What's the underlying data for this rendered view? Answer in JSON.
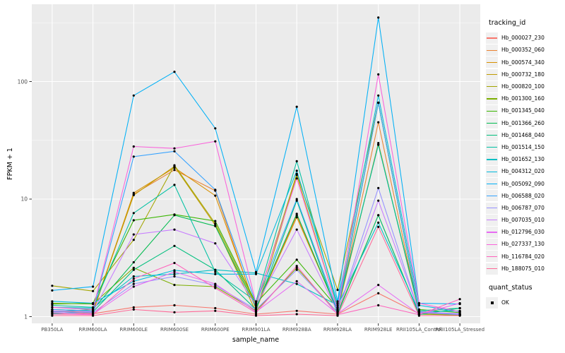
{
  "figure": {
    "xlabel": "sample_name",
    "ylabel": "FPKM + 1"
  },
  "legend": {
    "tracking_title": "tracking_id",
    "quant_title": "quant_status",
    "quant_ok_label": "OK"
  },
  "colors": {
    "panel_bg": "#EBEBEB",
    "grid": "#FFFFFF",
    "tick": "#333333",
    "tick_label": "#4D4D4D",
    "point": "#000000",
    "legend_key_bg": "#F0F0F0"
  },
  "chart_data": {
    "type": "line",
    "x_type": "categorical",
    "y_scale": "log10",
    "title": "",
    "xlabel": "sample_name",
    "ylabel": "FPKM + 1",
    "y_ticks": [
      1,
      10,
      100
    ],
    "y_minor_ticks": [
      3.16,
      31.6,
      316
    ],
    "ylim": [
      0.88,
      460
    ],
    "grid": true,
    "legend_position": "right",
    "point_marker": {
      "shape": "point",
      "color": "#000000",
      "meaning": "quant_status OK"
    },
    "categories": [
      "PB350LA",
      "RRIM600LA",
      "RRIM600LE",
      "RRIM600SE",
      "RRIM600PE",
      "RRIM901LA",
      "RRIM928BA",
      "RRIM928LA",
      "RRIM928LE",
      "RRII105LA_Control",
      "RRII105LA_Stressed"
    ],
    "series": [
      {
        "name": "Hb_000027_230",
        "color": "#F8766D",
        "values": [
          1.12,
          1.06,
          1.2,
          1.25,
          1.18,
          1.05,
          1.12,
          1.05,
          1.58,
          1.06,
          1.03
        ]
      },
      {
        "name": "Hb_000352_060",
        "color": "#EA8331",
        "values": [
          1.06,
          1.08,
          11.0,
          17.7,
          11.8,
          1.15,
          7.3,
          1.1,
          45,
          1.06,
          1.03
        ]
      },
      {
        "name": "Hb_000574_340",
        "color": "#D89000",
        "values": [
          1.1,
          1.1,
          11.3,
          18.5,
          10.7,
          1.18,
          7.0,
          1.12,
          30,
          1.08,
          1.04
        ]
      },
      {
        "name": "Hb_000732_180",
        "color": "#C09B00",
        "values": [
          1.15,
          1.12,
          10.8,
          19.0,
          6.0,
          1.1,
          16.0,
          1.15,
          66,
          1.1,
          1.05
        ]
      },
      {
        "name": "Hb_000820_100",
        "color": "#A3A500",
        "values": [
          1.83,
          1.65,
          4.5,
          19.4,
          6.2,
          1.25,
          16.4,
          1.69,
          66,
          1.12,
          1.18
        ]
      },
      {
        "name": "Hb_001300_160",
        "color": "#7CAE00",
        "values": [
          1.3,
          1.28,
          2.6,
          1.86,
          1.8,
          1.12,
          2.6,
          1.08,
          7.3,
          1.05,
          1.03
        ]
      },
      {
        "name": "Hb_001345_040",
        "color": "#39B600",
        "values": [
          1.28,
          1.3,
          6.6,
          7.4,
          6.5,
          1.3,
          3.05,
          1.18,
          29,
          1.15,
          1.08
        ]
      },
      {
        "name": "Hb_001366_260",
        "color": "#00BB4E",
        "values": [
          1.1,
          1.15,
          2.9,
          7.3,
          5.9,
          1.2,
          7.5,
          1.1,
          66,
          1.1,
          1.05
        ]
      },
      {
        "name": "Hb_001468_040",
        "color": "#00BF7D",
        "values": [
          1.06,
          1.1,
          2.5,
          4.0,
          2.5,
          1.15,
          9.7,
          1.05,
          7.3,
          1.04,
          1.18
        ]
      },
      {
        "name": "Hb_001514_150",
        "color": "#00C1A3",
        "values": [
          1.25,
          1.2,
          7.6,
          13.2,
          2.4,
          1.35,
          21,
          1.2,
          29,
          1.12,
          1.18
        ]
      },
      {
        "name": "Hb_001652_130",
        "color": "#00BFC4",
        "values": [
          1.2,
          1.18,
          2.2,
          2.3,
          2.5,
          2.35,
          1.9,
          1.25,
          6.3,
          1.1,
          1.12
        ]
      },
      {
        "name": "Hb_004312_020",
        "color": "#00BADE",
        "values": [
          1.35,
          1.3,
          2.0,
          2.48,
          2.3,
          2.3,
          17.4,
          1.3,
          76,
          1.25,
          1.1
        ]
      },
      {
        "name": "Hb_005092_090",
        "color": "#00B0F6",
        "values": [
          1.67,
          1.8,
          76,
          121,
          40,
          2.4,
          61,
          1.35,
          350,
          1.3,
          1.28
        ]
      },
      {
        "name": "Hb_006588_020",
        "color": "#35A2FF",
        "values": [
          1.15,
          1.12,
          23,
          25.5,
          12,
          1.3,
          10,
          1.12,
          66,
          1.1,
          1.05
        ]
      },
      {
        "name": "Hb_006787_070",
        "color": "#9590FF",
        "values": [
          1.1,
          1.08,
          1.9,
          2.2,
          1.85,
          1.15,
          2.5,
          1.08,
          12.4,
          1.08,
          1.04
        ]
      },
      {
        "name": "Hb_007035_010",
        "color": "#C77CFF",
        "values": [
          1.12,
          1.1,
          5.0,
          5.5,
          4.2,
          1.25,
          5.5,
          1.1,
          9.7,
          1.1,
          1.06
        ]
      },
      {
        "name": "Hb_012796_030",
        "color": "#E76BF3",
        "values": [
          1.08,
          1.05,
          1.8,
          2.4,
          1.9,
          1.1,
          2.0,
          1.06,
          1.86,
          1.05,
          1.3
        ]
      },
      {
        "name": "Hb_027337_130",
        "color": "#FA62DB",
        "values": [
          1.2,
          1.15,
          28,
          27,
          31,
          1.3,
          15,
          1.15,
          115,
          1.3,
          1.1
        ]
      },
      {
        "name": "Hb_116784_020",
        "color": "#FF62BC",
        "values": [
          1.05,
          1.04,
          2.1,
          2.86,
          1.75,
          1.08,
          2.7,
          1.04,
          1.25,
          1.04,
          1.41
        ]
      },
      {
        "name": "Hb_188075_010",
        "color": "#FF6A98",
        "values": [
          1.02,
          1.02,
          1.15,
          1.09,
          1.12,
          1.02,
          1.05,
          1.02,
          5.8,
          1.02,
          1.02
        ]
      }
    ]
  }
}
